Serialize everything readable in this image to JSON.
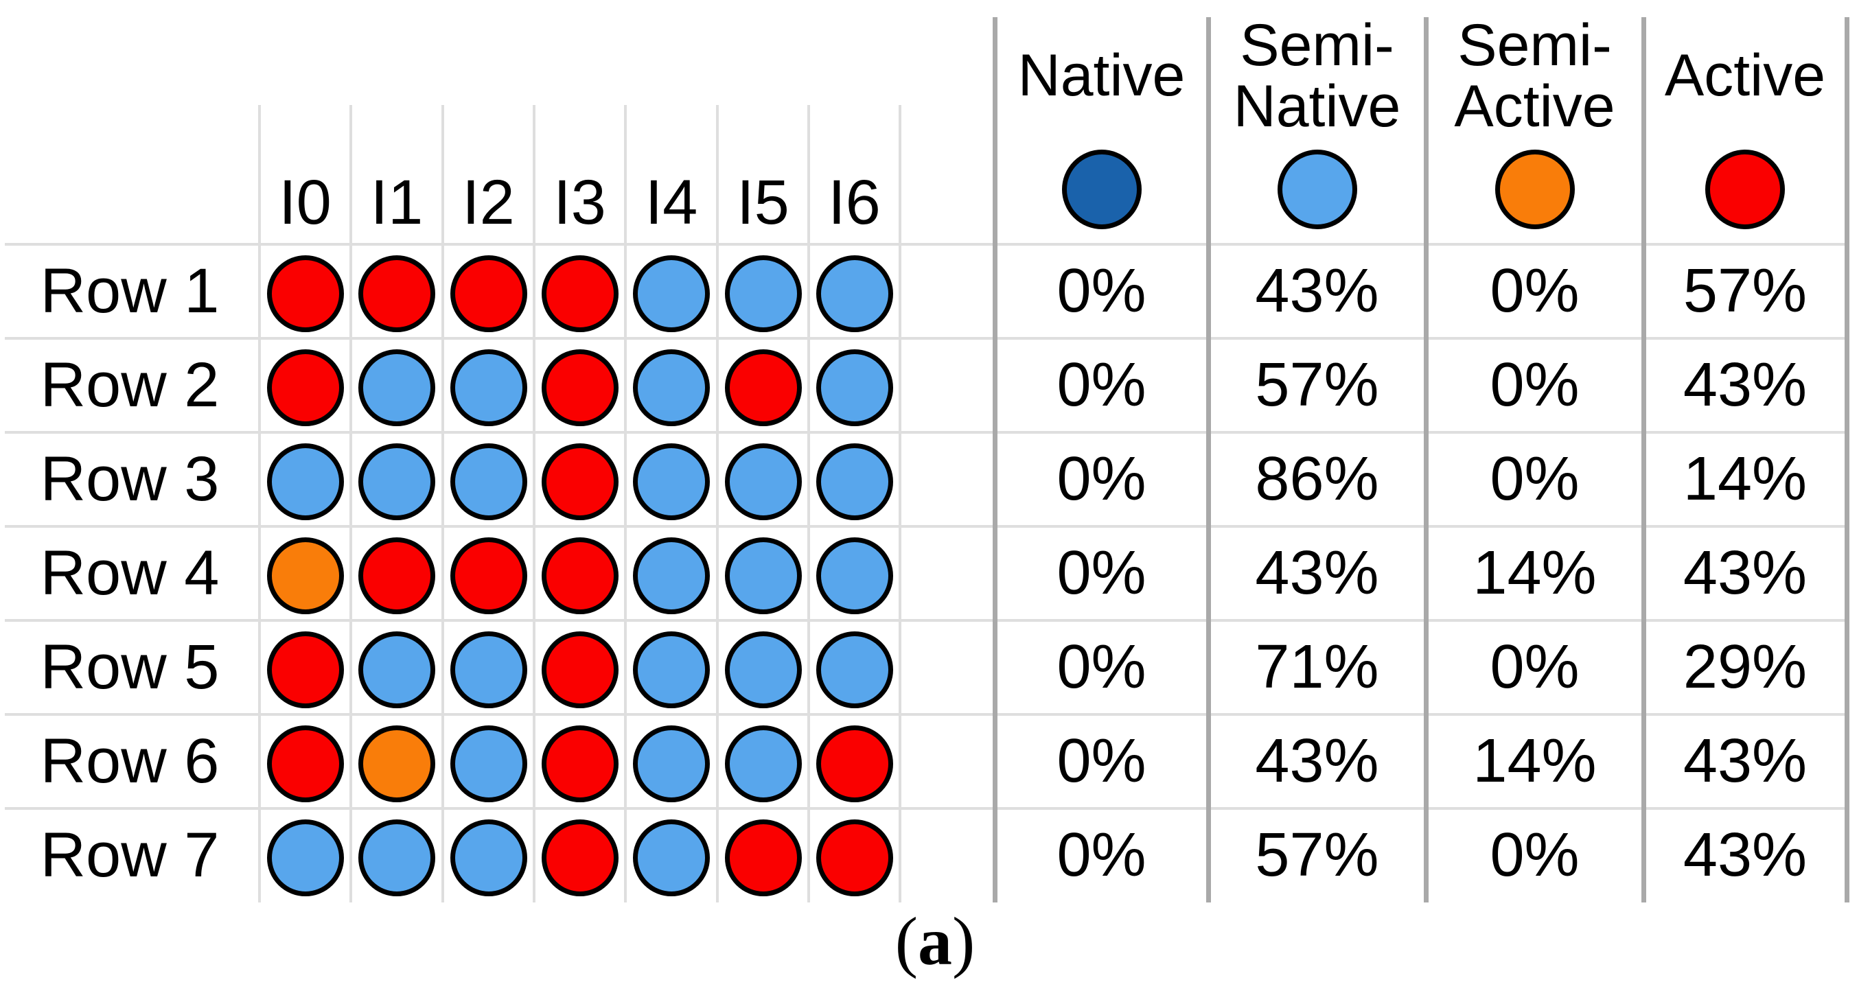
{
  "chart_data": {
    "type": "table",
    "dot_columns": [
      "I0",
      "I1",
      "I2",
      "I3",
      "I4",
      "I5",
      "I6"
    ],
    "category_columns": [
      "Native",
      "Semi-Native",
      "Semi-Active",
      "Active"
    ],
    "categories": [
      {
        "key": "native",
        "label": "Native",
        "color": "#1a62ab"
      },
      {
        "key": "semi_native",
        "label": "Semi-\nNative",
        "color": "#58a6ec"
      },
      {
        "key": "semi_active",
        "label": "Semi-\nActive",
        "color": "#f97d0a"
      },
      {
        "key": "active",
        "label": "Active",
        "color": "#fa0000"
      }
    ],
    "rows": [
      {
        "label": "Row 1",
        "dots": [
          "active",
          "active",
          "active",
          "active",
          "semi_native",
          "semi_native",
          "semi_native"
        ],
        "percents": [
          "0%",
          "43%",
          "0%",
          "57%"
        ]
      },
      {
        "label": "Row 2",
        "dots": [
          "active",
          "semi_native",
          "semi_native",
          "active",
          "semi_native",
          "active",
          "semi_native"
        ],
        "percents": [
          "0%",
          "57%",
          "0%",
          "43%"
        ]
      },
      {
        "label": "Row 3",
        "dots": [
          "semi_native",
          "semi_native",
          "semi_native",
          "active",
          "semi_native",
          "semi_native",
          "semi_native"
        ],
        "percents": [
          "0%",
          "86%",
          "0%",
          "14%"
        ]
      },
      {
        "label": "Row 4",
        "dots": [
          "semi_active",
          "active",
          "active",
          "active",
          "semi_native",
          "semi_native",
          "semi_native"
        ],
        "percents": [
          "0%",
          "43%",
          "14%",
          "43%"
        ]
      },
      {
        "label": "Row 5",
        "dots": [
          "active",
          "semi_native",
          "semi_native",
          "active",
          "semi_native",
          "semi_native",
          "semi_native"
        ],
        "percents": [
          "0%",
          "71%",
          "0%",
          "29%"
        ]
      },
      {
        "label": "Row 6",
        "dots": [
          "active",
          "semi_active",
          "semi_native",
          "active",
          "semi_native",
          "semi_native",
          "active"
        ],
        "percents": [
          "0%",
          "43%",
          "14%",
          "43%"
        ]
      },
      {
        "label": "Row 7",
        "dots": [
          "semi_native",
          "semi_native",
          "semi_native",
          "active",
          "semi_native",
          "active",
          "active"
        ],
        "percents": [
          "0%",
          "57%",
          "0%",
          "43%"
        ]
      }
    ],
    "layout_hints": {
      "legend_position": "top of percentage columns",
      "grid": "light gray row/column rules, darker gray category separators"
    }
  },
  "caption": {
    "open": "(",
    "letter": "a",
    "close": ")"
  },
  "colors": {
    "grid_line": "#dedede",
    "separator_line": "#a9a9a9",
    "dot_stroke": "#000000",
    "text": "#000000"
  }
}
